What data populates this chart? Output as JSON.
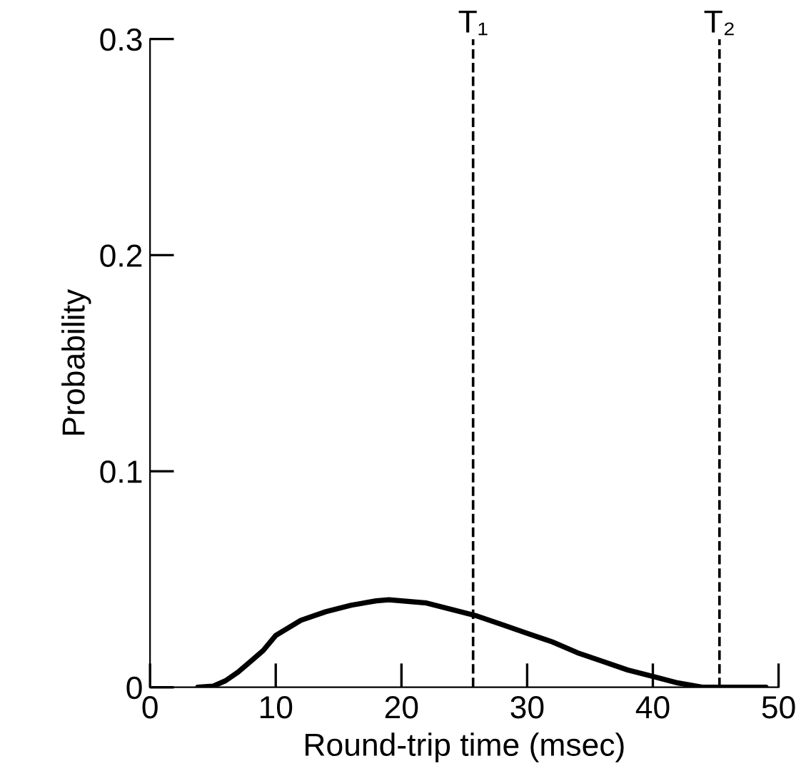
{
  "chart_data": {
    "type": "line",
    "xlabel": "Round-trip time (msec)",
    "ylabel": "Probability",
    "xlim": [
      0,
      50
    ],
    "ylim": [
      0,
      0.3
    ],
    "xticks": [
      0,
      10,
      20,
      30,
      40,
      50
    ],
    "yticks": [
      0,
      0.1,
      0.2,
      0.3
    ],
    "grid": false,
    "marker": "none",
    "line_style": "solid",
    "series": [
      {
        "color": "#000000",
        "x": [
          3.8,
          5,
          6,
          7,
          8,
          9,
          10,
          12,
          14,
          16,
          18,
          19,
          20,
          22,
          24,
          26,
          28,
          30,
          32,
          34,
          36,
          38,
          40,
          42,
          44,
          49
        ],
        "values": [
          0,
          0.0005,
          0.003,
          0.007,
          0.012,
          0.017,
          0.024,
          0.031,
          0.035,
          0.038,
          0.04,
          0.0405,
          0.04,
          0.039,
          0.036,
          0.033,
          0.029,
          0.025,
          0.021,
          0.016,
          0.012,
          0.008,
          0.005,
          0.002,
          0,
          0
        ]
      }
    ],
    "ref_lines": [
      {
        "axis": "x",
        "value": 25.7,
        "label": "T₁",
        "color": "#000000",
        "line_style": "dashed"
      },
      {
        "axis": "x",
        "value": 45.3,
        "label": "T₂",
        "color": "#000000",
        "line_style": "dashed"
      }
    ]
  }
}
